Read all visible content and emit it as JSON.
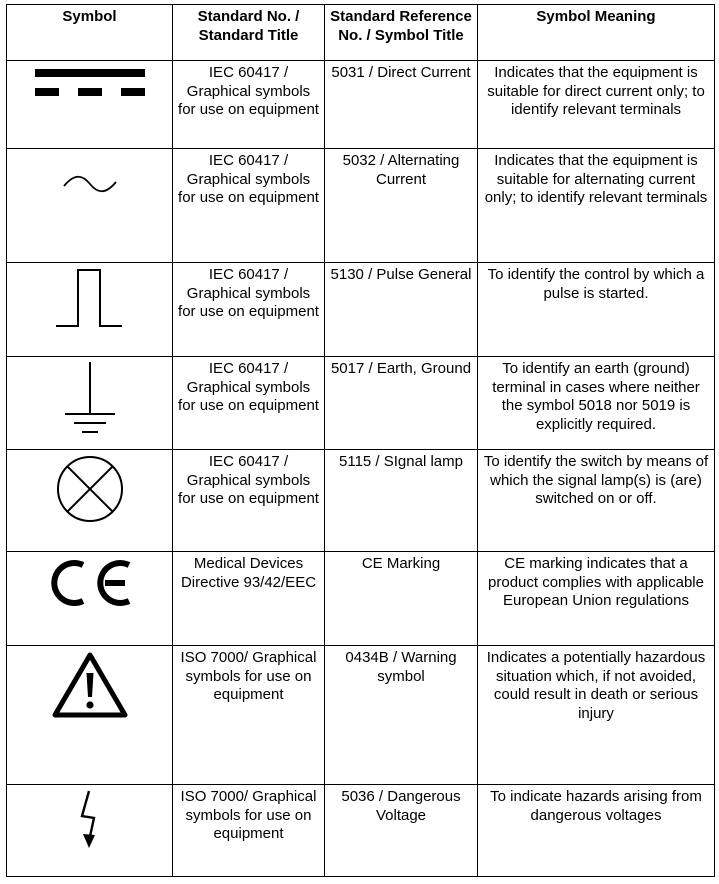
{
  "headers": {
    "symbol": "Symbol",
    "standard_no": "Standard No. / Standard Title",
    "reference_no": "Standard Reference No. / Symbol Title",
    "meaning": "Symbol Meaning"
  },
  "rows": [
    {
      "icon": "direct-current-icon",
      "standard": "IEC 60417 / Graphical symbols for use on equipment",
      "reference": "5031 / Direct Current",
      "meaning": "Indicates that the equipment is suitable for direct current only; to identify relevant terminals"
    },
    {
      "icon": "alternating-current-icon",
      "standard": "IEC 60417 / Graphical symbols for use on equipment",
      "reference": "5032 / Alternating Current",
      "meaning": "Indicates that the equipment is suitable for alternating current only; to identify relevant terminals"
    },
    {
      "icon": "pulse-icon",
      "standard": "IEC 60417 / Graphical symbols for use on equipment",
      "reference": "5130 / Pulse General",
      "meaning": "To identify the control by which a pulse is started."
    },
    {
      "icon": "earth-ground-icon",
      "standard": "IEC 60417 / Graphical symbols for use on equipment",
      "reference": "5017 / Earth, Ground",
      "meaning": "To identify an earth (ground) terminal in cases where neither the symbol 5018 nor 5019 is explicitly required."
    },
    {
      "icon": "signal-lamp-icon",
      "standard": "IEC 60417 / Graphical symbols for use on equipment",
      "reference": "5115 / SIgnal lamp",
      "meaning": "To identify the switch by means of which the signal lamp(s) is (are) switched on or off."
    },
    {
      "icon": "ce-marking-icon",
      "standard": "Medical Devices Directive 93/42/EEC",
      "reference": "CE Marking",
      "meaning": "CE marking indicates that a product complies with applicable European Union regulations"
    },
    {
      "icon": "warning-triangle-icon",
      "standard": "ISO 7000/ Graphical symbols for use on equipment",
      "reference": "0434B / Warning symbol",
      "meaning": "Indicates a potentially hazardous situation which, if not avoided, could result in death or serious injury"
    },
    {
      "icon": "dangerous-voltage-icon",
      "standard": "ISO 7000/ Graphical symbols for use on equipment",
      "reference": "5036 / Dangerous Voltage",
      "meaning": "To indicate hazards arising from dangerous voltages"
    }
  ]
}
